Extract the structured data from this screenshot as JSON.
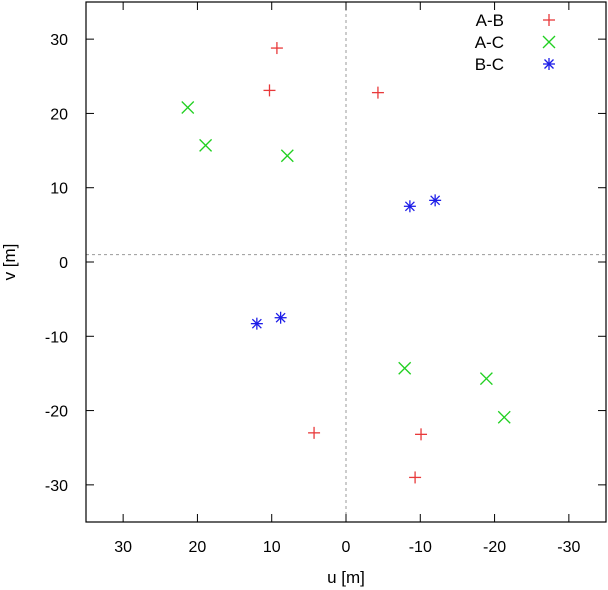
{
  "chart_data": {
    "type": "scatter",
    "title": "",
    "xlabel": "u [m]",
    "ylabel": "v [m]",
    "xlim": [
      35,
      -35
    ],
    "ylim": [
      -35,
      35
    ],
    "x_reversed": true,
    "xticks": [
      30,
      20,
      10,
      0,
      -10,
      -20,
      -30
    ],
    "yticks": [
      -30,
      -20,
      -10,
      0,
      10,
      20,
      30
    ],
    "grid": false,
    "reference_lines": {
      "vertical_at_x": 0,
      "horizontal_at_y": 1
    },
    "legend_position": "top-right",
    "series": [
      {
        "name": "A-B",
        "marker": "plus",
        "color": "#e8393a",
        "points": [
          [
            9.3,
            28.8
          ],
          [
            10.3,
            23.1
          ],
          [
            -4.3,
            22.8
          ],
          [
            4.3,
            -23.0
          ],
          [
            -10.1,
            -23.2
          ],
          [
            -9.3,
            -29.0
          ]
        ]
      },
      {
        "name": "A-C",
        "marker": "cross",
        "color": "#21d021",
        "points": [
          [
            21.3,
            20.8
          ],
          [
            18.9,
            15.7
          ],
          [
            7.9,
            14.3
          ],
          [
            -7.9,
            -14.3
          ],
          [
            -18.9,
            -15.7
          ],
          [
            -21.3,
            -20.9
          ]
        ]
      },
      {
        "name": "B-C",
        "marker": "star",
        "color": "#1d1de8",
        "points": [
          [
            -8.6,
            7.5
          ],
          [
            -12.0,
            8.3
          ],
          [
            8.8,
            -7.5
          ],
          [
            12.0,
            -8.3
          ]
        ]
      }
    ]
  },
  "ui": {
    "colors": {
      "frame": "#000000",
      "reference_line": "#9a9a9a",
      "background": "#ffffff"
    }
  }
}
